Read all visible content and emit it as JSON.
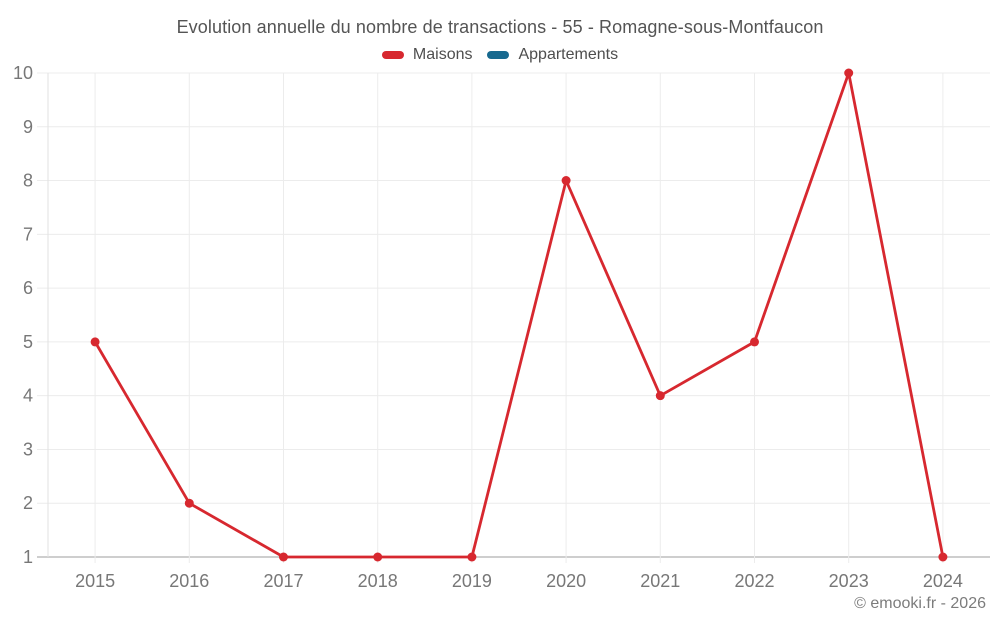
{
  "page": {
    "title": "Evolution annuelle du nombre de transactions - 55 - Romagne-sous-Montfaucon",
    "copyright": "© emooki.fr - 2026"
  },
  "colors": {
    "maisons": "#d7282f",
    "appartements": "#17698f",
    "grid_line": "#ececec",
    "axis_baseline": "#bdbdbd",
    "axis_border": "#e2e2e2",
    "axis_label": "#777777",
    "title_text": "#545454",
    "legend_text": "#4e4e4e",
    "copyright_text": "#7c7c7c",
    "background": "#ffffff"
  },
  "chart_data": {
    "type": "line",
    "title": "Evolution annuelle du nombre de transactions - 55 - Romagne-sous-Montfaucon",
    "categories": [
      "2015",
      "2016",
      "2017",
      "2018",
      "2019",
      "2020",
      "2021",
      "2022",
      "2023",
      "2024"
    ],
    "series": [
      {
        "name": "Maisons",
        "color": "#d7282f",
        "values": [
          5,
          2,
          1,
          1,
          1,
          8,
          4,
          5,
          10,
          1
        ]
      },
      {
        "name": "Appartements",
        "color": "#17698f",
        "values": []
      }
    ],
    "xlabel": "",
    "ylabel": "",
    "ylim": [
      1,
      10
    ],
    "yticks": [
      1,
      2,
      3,
      4,
      5,
      6,
      7,
      8,
      9,
      10
    ],
    "grid": true,
    "legend_position": "top",
    "point_style": "circle",
    "line_style": "straight"
  }
}
